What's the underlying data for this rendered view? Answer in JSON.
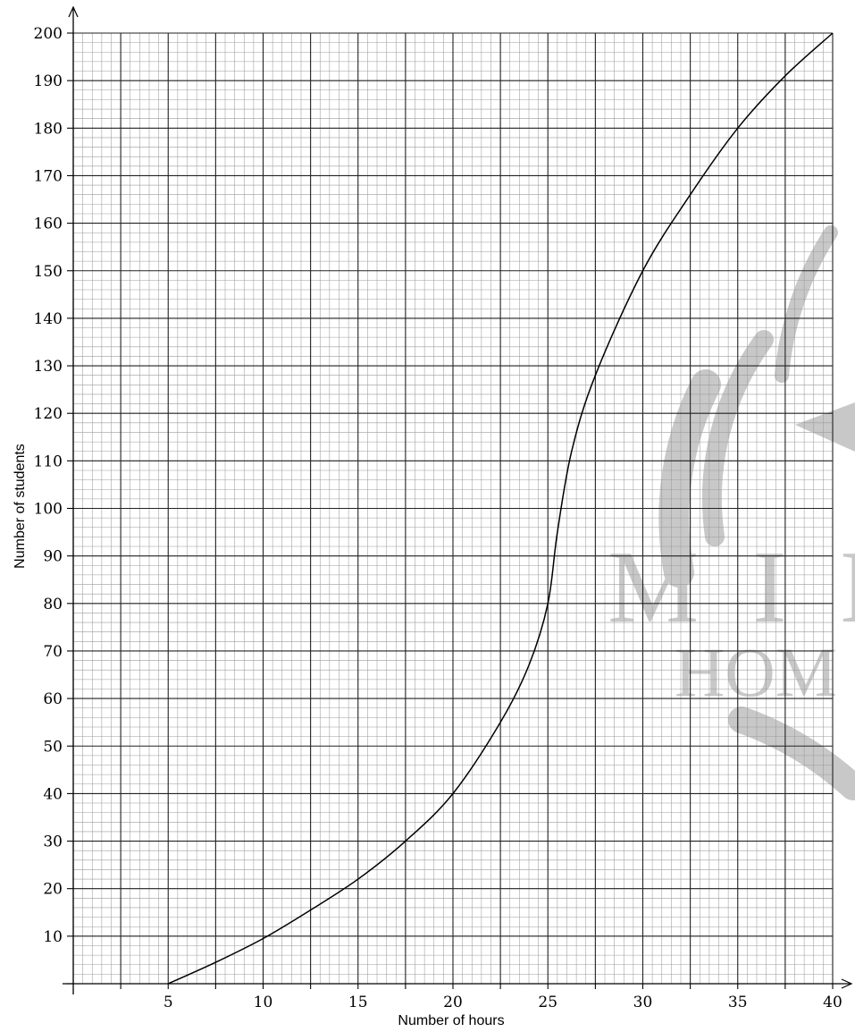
{
  "chart_data": {
    "type": "line",
    "title": "",
    "xlabel": "Number of hours",
    "ylabel": "Number of students",
    "xlim": [
      0,
      40
    ],
    "ylim": [
      0,
      200
    ],
    "x_ticks": [
      5,
      10,
      15,
      20,
      25,
      30,
      35,
      40
    ],
    "y_ticks": [
      10,
      20,
      30,
      40,
      50,
      60,
      70,
      80,
      90,
      100,
      110,
      120,
      130,
      140,
      150,
      160,
      170,
      180,
      190,
      200
    ],
    "grid": "on",
    "x_minor_step": 0.5,
    "y_minor_step": 2,
    "x_major_step": 2.5,
    "y_major_step": 10,
    "curve_color": "#000000",
    "series": [
      {
        "x": [
          5,
          7.5,
          10,
          12.5,
          15,
          17.5,
          20,
          22.5,
          24,
          25,
          25.5,
          26.25,
          27.5,
          30,
          32.5,
          35,
          37.5,
          40
        ],
        "values": [
          0,
          4.5,
          9.5,
          15.5,
          22,
          30,
          40,
          55,
          67,
          80,
          95,
          112,
          128,
          150,
          166,
          180,
          191,
          200
        ]
      }
    ],
    "watermark": {
      "text_top": "MIN",
      "text_bottom": "HOM",
      "color": "#c8c8c8"
    }
  }
}
